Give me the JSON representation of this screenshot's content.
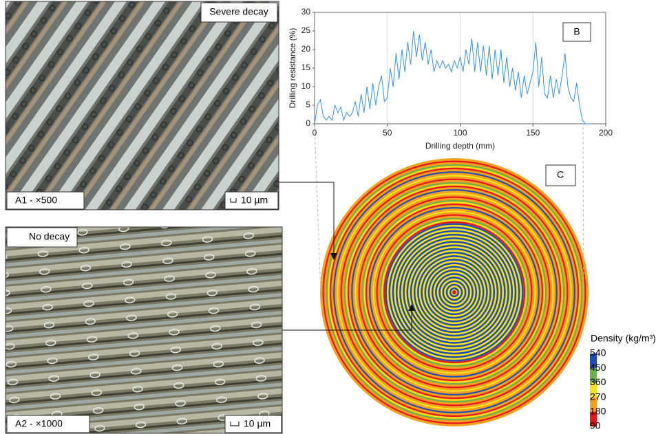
{
  "panels": {
    "a1": {
      "label": "Severe decay",
      "caption": "A1 - ×500",
      "scale": "10 µm"
    },
    "a2": {
      "label": "No decay",
      "caption": "A2 - ×1000",
      "scale": "10 µm"
    },
    "b": {
      "label": "B"
    },
    "c": {
      "label": "C"
    }
  },
  "colorbar": {
    "title": "Density (kg/m³)",
    "ticks": [
      540,
      450,
      360,
      270,
      180,
      90
    ],
    "colors": [
      "#1f4fb4",
      "#6ab04c",
      "#f5e11c",
      "#f4a020",
      "#e8141e"
    ]
  },
  "chart_data": {
    "type": "line",
    "xlabel": "Drilling depth (mm)",
    "ylabel": "Drilling resistance (%)",
    "x": [
      0,
      2,
      4,
      6,
      8,
      10,
      12,
      14,
      16,
      18,
      20,
      22,
      24,
      26,
      28,
      30,
      32,
      34,
      36,
      38,
      40,
      42,
      44,
      46,
      48,
      50,
      52,
      54,
      56,
      58,
      60,
      62,
      64,
      66,
      68,
      70,
      72,
      74,
      76,
      78,
      80,
      82,
      84,
      86,
      88,
      90,
      92,
      94,
      96,
      98,
      100,
      102,
      104,
      106,
      108,
      110,
      112,
      114,
      116,
      118,
      120,
      122,
      124,
      126,
      128,
      130,
      132,
      134,
      136,
      138,
      140,
      142,
      144,
      146,
      148,
      150,
      152,
      154,
      156,
      158,
      160,
      162,
      164,
      166,
      168,
      170,
      172,
      174,
      176,
      178,
      180,
      182,
      184,
      186,
      188,
      190
    ],
    "series": [
      {
        "name": null,
        "color": "#3a8fd8",
        "values": [
          0,
          5,
          6.5,
          2,
          1,
          2,
          1,
          5,
          3,
          4.5,
          1,
          3,
          2,
          3,
          6,
          2,
          8,
          3,
          10,
          4,
          11,
          5,
          10,
          13,
          6,
          7,
          15,
          10,
          19,
          12,
          20,
          14,
          22,
          16,
          25,
          18,
          24,
          17,
          22,
          16,
          20,
          14,
          17,
          15,
          17,
          15,
          16,
          14,
          17,
          15,
          18,
          14,
          20,
          16,
          23,
          14,
          22,
          14,
          21,
          13,
          21,
          12,
          20,
          13,
          20,
          11,
          18,
          10,
          15,
          9,
          14,
          7,
          13,
          8,
          11,
          14,
          22,
          10,
          18,
          8,
          7,
          13,
          7,
          12,
          8,
          13,
          19,
          10,
          7,
          6,
          11,
          5,
          1,
          0,
          0,
          0
        ]
      }
    ],
    "xlim": [
      0,
      200
    ],
    "ylim": [
      0,
      30
    ],
    "xticks": [
      0,
      50,
      100,
      150,
      200
    ],
    "yticks": [
      0,
      5,
      10,
      15,
      20,
      25,
      30
    ],
    "grid": "x"
  }
}
